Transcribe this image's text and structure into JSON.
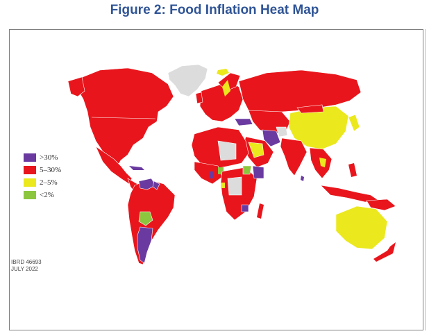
{
  "title": "Figure 2: Food Inflation Heat Map",
  "legend": [
    {
      "label": ">30%",
      "color": "#6a3aa0"
    },
    {
      "label": "5–30%",
      "color": "#e8161c"
    },
    {
      "label": "2–5%",
      "color": "#ebe81d"
    },
    {
      "label": "<2%",
      "color": "#8cc63e"
    }
  ],
  "no_data_color": "#dcdcdc",
  "stamp": {
    "line1": "IBRD 46693",
    "line2": "JULY 2022"
  }
}
